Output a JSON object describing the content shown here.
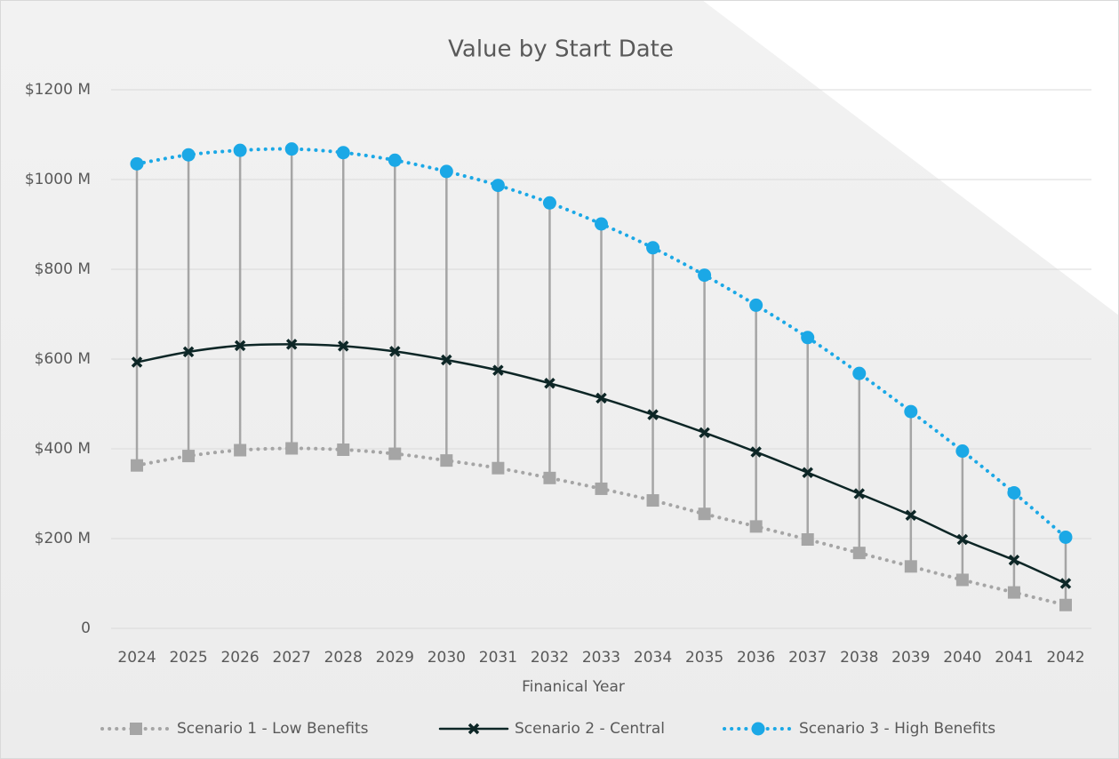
{
  "chart_data": {
    "type": "line",
    "title": "Value by Start Date",
    "x_label": "Finanical Year",
    "categories": [
      "2024",
      "2025",
      "2026",
      "2027",
      "2028",
      "2029",
      "2030",
      "2031",
      "2032",
      "2033",
      "2034",
      "2035",
      "2036",
      "2037",
      "2038",
      "2039",
      "2040",
      "2041",
      "2042"
    ],
    "series": [
      {
        "name": "Scenario 1 - Low Benefits",
        "color": "#a5a5a5",
        "line": "dotted",
        "marker": "square",
        "values": [
          363,
          384,
          397,
          401,
          398,
          389,
          374,
          357,
          335,
          311,
          285,
          255,
          227,
          198,
          168,
          138,
          108,
          80,
          52
        ]
      },
      {
        "name": "Scenario 2 - Central",
        "color": "#0d2626",
        "line": "solid",
        "marker": "x",
        "values": [
          593,
          616,
          630,
          633,
          629,
          617,
          598,
          575,
          546,
          513,
          476,
          436,
          393,
          347,
          300,
          252,
          198,
          152,
          100
        ]
      },
      {
        "name": "Scenario 3 - High Benefits",
        "color": "#1ba8e6",
        "line": "dotted",
        "marker": "circle",
        "values": [
          1035,
          1055,
          1065,
          1068,
          1060,
          1043,
          1018,
          987,
          948,
          901,
          848,
          787,
          720,
          648,
          568,
          483,
          395,
          302,
          203
        ]
      }
    ],
    "high_low_lines": true,
    "high_low_color": "#a5a5a5",
    "ylim": [
      0,
      1200
    ],
    "yticks": [
      0,
      {
        "value": 200,
        "label": "$200 M"
      },
      {
        "value": 400,
        "label": "$400 M"
      },
      {
        "value": 600,
        "label": "$600 M"
      },
      {
        "value": 800,
        "label": "$800 M"
      },
      {
        "value": 1000,
        "label": "$1000 M"
      },
      {
        "value": 1200,
        "label": "$1200 M"
      }
    ],
    "grid": true,
    "legend": "bottom"
  }
}
